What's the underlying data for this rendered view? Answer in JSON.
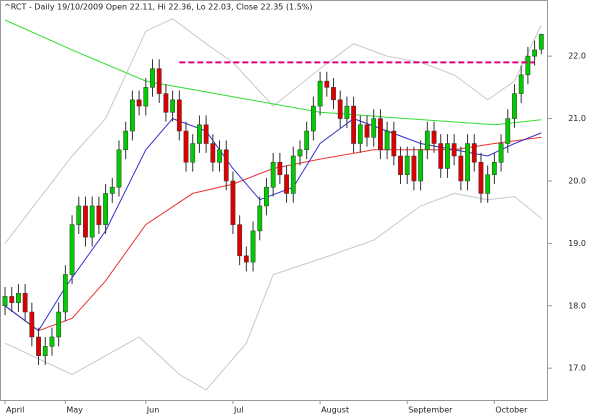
{
  "chart_data": {
    "type": "candlestick",
    "title": "^RCT - Daily 19/10/2009 Open 22.11, Hi 22.36, Lo 22.03, Close 22.35 (1.5%)",
    "xlim": [
      -0.75,
      81
    ],
    "xticks": [
      {
        "value": 0,
        "label": "April"
      },
      {
        "value": 9,
        "label": "May"
      },
      {
        "value": 21,
        "label": "Jun"
      },
      {
        "value": 34,
        "label": "Jul"
      },
      {
        "value": 47,
        "label": "August"
      },
      {
        "value": 60,
        "label": "September"
      },
      {
        "value": 73,
        "label": "October"
      }
    ],
    "ylim": [
      16.49,
      22.9
    ],
    "yticks": [
      {
        "value": 17,
        "label": "17.0"
      },
      {
        "value": 18,
        "label": "18.0"
      },
      {
        "value": 19,
        "label": "19.0"
      },
      {
        "value": 20,
        "label": "20.0"
      },
      {
        "value": 21,
        "label": "21.0"
      },
      {
        "value": 22,
        "label": "22.0"
      }
    ],
    "up_color": "#00cc00",
    "down_color": "#dd0000",
    "open": [
      18.0,
      18.15,
      18.05,
      18.2,
      17.9,
      17.5,
      17.2,
      17.35,
      17.5,
      17.9,
      18.5,
      19.3,
      19.6,
      19.1,
      19.6,
      19.3,
      19.8,
      19.9,
      20.5,
      20.8,
      21.3,
      21.2,
      21.5,
      21.8,
      21.4,
      21.1,
      21.3,
      20.8,
      20.3,
      20.6,
      20.9,
      20.6,
      20.3,
      20.5,
      20.0,
      19.3,
      18.8,
      18.7,
      19.2,
      19.6,
      19.9,
      20.3,
      20.1,
      19.8,
      20.4,
      20.5,
      20.8,
      21.2,
      21.6,
      21.5,
      21.3,
      21.0,
      21.2,
      20.6,
      20.9,
      20.7,
      21.0,
      20.5,
      20.8,
      20.4,
      20.1,
      20.4,
      20.0,
      20.5,
      20.8,
      20.6,
      20.2,
      20.6,
      20.4,
      20.0,
      20.6,
      20.3,
      19.8,
      20.1,
      20.3,
      20.6,
      21.0,
      21.4,
      21.7,
      22.0,
      22.11
    ],
    "high": [
      18.3,
      18.3,
      18.35,
      18.35,
      18.05,
      17.65,
      17.5,
      17.65,
      18.05,
      18.65,
      19.45,
      19.75,
      19.75,
      19.75,
      19.75,
      19.95,
      20.05,
      20.65,
      20.95,
      21.45,
      21.45,
      21.65,
      21.95,
      21.95,
      21.55,
      21.45,
      21.45,
      20.95,
      20.75,
      21.05,
      21.05,
      20.75,
      20.65,
      20.65,
      20.15,
      19.45,
      18.95,
      19.35,
      19.75,
      20.05,
      20.45,
      20.45,
      20.25,
      20.55,
      20.65,
      20.95,
      21.35,
      21.75,
      21.75,
      21.65,
      21.45,
      21.35,
      21.35,
      21.05,
      21.05,
      21.15,
      21.15,
      20.95,
      20.95,
      20.55,
      20.55,
      20.55,
      20.65,
      20.95,
      20.95,
      20.75,
      20.75,
      20.75,
      20.55,
      20.75,
      20.75,
      20.45,
      20.25,
      20.45,
      20.75,
      21.15,
      21.55,
      21.85,
      22.15,
      22.25,
      22.36
    ],
    "low": [
      17.85,
      17.9,
      17.9,
      17.75,
      17.35,
      17.05,
      17.05,
      17.2,
      17.35,
      17.75,
      18.35,
      19.15,
      18.95,
      18.95,
      19.15,
      19.15,
      19.65,
      19.75,
      20.35,
      20.65,
      21.05,
      21.05,
      21.35,
      21.25,
      20.95,
      20.95,
      20.65,
      20.15,
      20.15,
      20.45,
      20.45,
      20.15,
      20.15,
      19.85,
      19.15,
      18.65,
      18.55,
      18.55,
      19.05,
      19.45,
      19.75,
      19.95,
      19.65,
      19.65,
      20.25,
      20.35,
      20.65,
      21.05,
      21.35,
      21.15,
      20.85,
      20.85,
      20.45,
      20.45,
      20.55,
      20.55,
      20.35,
      20.35,
      20.25,
      19.95,
      19.95,
      19.85,
      19.85,
      20.35,
      20.45,
      20.05,
      20.05,
      20.25,
      19.85,
      19.85,
      20.15,
      19.65,
      19.65,
      19.95,
      20.15,
      20.45,
      20.85,
      21.25,
      21.55,
      21.85,
      22.03
    ],
    "close": [
      18.15,
      18.05,
      18.2,
      17.9,
      17.5,
      17.2,
      17.35,
      17.5,
      17.9,
      18.5,
      19.3,
      19.6,
      19.1,
      19.6,
      19.3,
      19.8,
      19.9,
      20.5,
      20.8,
      21.3,
      21.2,
      21.5,
      21.8,
      21.4,
      21.1,
      21.3,
      20.8,
      20.3,
      20.6,
      20.9,
      20.6,
      20.3,
      20.5,
      20.0,
      19.3,
      18.8,
      18.7,
      19.2,
      19.6,
      19.9,
      20.3,
      20.1,
      19.8,
      20.4,
      20.5,
      20.8,
      21.2,
      21.6,
      21.5,
      21.3,
      21.0,
      21.2,
      20.6,
      20.9,
      20.7,
      21.0,
      20.5,
      20.8,
      20.4,
      20.1,
      20.4,
      20.0,
      20.5,
      20.8,
      20.6,
      20.2,
      20.6,
      20.4,
      20.0,
      20.6,
      20.3,
      19.8,
      20.1,
      20.3,
      20.6,
      21.0,
      21.4,
      21.7,
      22.0,
      22.1,
      22.35
    ],
    "lines": [
      {
        "color": "#c8c8c8",
        "x": [
          0,
          10,
          15,
          21,
          25,
          30,
          34,
          40,
          47,
          52,
          57,
          62,
          67,
          72,
          76,
          80
        ],
        "values": [
          19.0,
          20.4,
          21.0,
          22.4,
          22.6,
          22.2,
          21.9,
          21.2,
          21.8,
          22.2,
          22.0,
          21.9,
          21.7,
          21.3,
          21.6,
          22.5
        ]
      },
      {
        "color": "#c8c8c8",
        "x": [
          0,
          10,
          20,
          26,
          30,
          36,
          40,
          47,
          55,
          62,
          67,
          72,
          76,
          80
        ],
        "values": [
          17.4,
          16.9,
          17.5,
          16.9,
          16.65,
          17.4,
          18.5,
          18.75,
          19.05,
          19.6,
          19.8,
          19.7,
          19.75,
          19.4
        ]
      },
      {
        "color": "#33dd33",
        "x": [
          0,
          10,
          21,
          34,
          47,
          60,
          73,
          80
        ],
        "values": [
          22.58,
          22.1,
          21.6,
          21.35,
          21.1,
          21.0,
          20.9,
          20.98
        ]
      },
      {
        "color": "#ee3333",
        "x": [
          0,
          5,
          10,
          15,
          21,
          28,
          34,
          40,
          47,
          55,
          60,
          67,
          73,
          80
        ],
        "values": [
          18.0,
          17.6,
          17.8,
          18.4,
          19.3,
          19.8,
          19.95,
          20.2,
          20.35,
          20.5,
          20.5,
          20.5,
          20.6,
          20.7
        ]
      },
      {
        "color": "#3333cc",
        "x": [
          0,
          5,
          9,
          15,
          21,
          25,
          30,
          34,
          38,
          43,
          47,
          52,
          57,
          62,
          67,
          72,
          76,
          80
        ],
        "values": [
          18.0,
          17.6,
          18.3,
          19.2,
          20.5,
          21.0,
          20.8,
          20.2,
          19.7,
          19.9,
          20.6,
          21.0,
          20.8,
          20.6,
          20.5,
          20.4,
          20.6,
          20.77
        ]
      }
    ],
    "resistance": {
      "value": 21.9,
      "x": [
        26,
        79
      ],
      "color": "#e0007a"
    }
  }
}
